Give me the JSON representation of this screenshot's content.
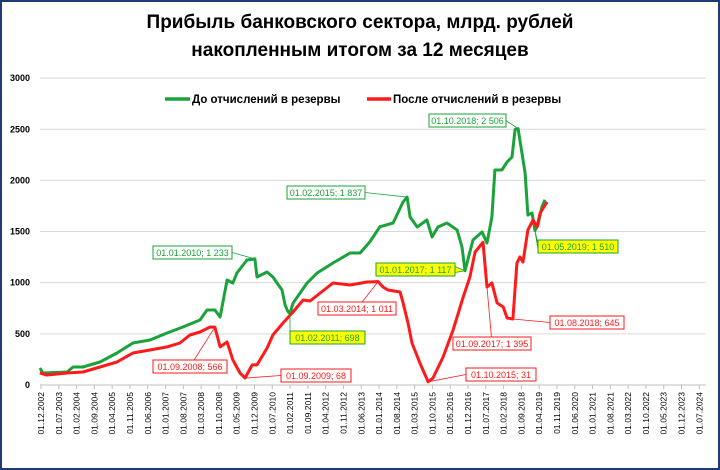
{
  "chart_data": {
    "type": "line",
    "title": [
      "Прибыль банковского сектора, млрд. рублей",
      "накопленным итогом за 12 месяцев"
    ],
    "xlabel": "",
    "ylabel": "",
    "ylim": [
      0,
      3000
    ],
    "yticks": [
      "0",
      "500",
      "1000",
      "1500",
      "2000",
      "2500",
      "3000"
    ],
    "ytick_values": [
      0,
      500,
      1000,
      1500,
      2000,
      2500,
      3000
    ],
    "xticks": [
      "01.12.2002",
      "01.07.2003",
      "01.02.2004",
      "01.09.2004",
      "01.04.2005",
      "01.11.2005",
      "01.06.2006",
      "01.01.2007",
      "01.08.2007",
      "01.03.2008",
      "01.10.2008",
      "01.05.2009",
      "01.12.2009",
      "01.07.2010",
      "01.02.2011",
      "01.09.2011",
      "01.04.2012",
      "01.11.2012",
      "01.06.2013",
      "01.01.2014",
      "01.08.2014",
      "01.03.2015",
      "01.10.2015",
      "01.05.2016",
      "01.12.2016",
      "01.07.2017",
      "01.02.2018",
      "01.09.2018",
      "01.04.2019",
      "01.11.2019",
      "01.06.2020",
      "01.01.2021",
      "01.08.2021",
      "01.03.2022",
      "01.10.2022",
      "01.05.2023",
      "01.12.2023",
      "01.07.2024"
    ],
    "x_unit": "decimal year",
    "xlim": [
      2002.917,
      2024.5
    ],
    "grid": true,
    "legend_position": "top",
    "series": [
      {
        "name": "До отчислений в резервы",
        "color": "#1aa33a",
        "points": [
          [
            2002.88,
            166
          ],
          [
            2002.98,
            117
          ],
          [
            2003.77,
            127
          ],
          [
            2003.97,
            176
          ],
          [
            2004.29,
            176
          ],
          [
            2004.85,
            225
          ],
          [
            2005.41,
            313
          ],
          [
            2005.93,
            411
          ],
          [
            2006.49,
            440
          ],
          [
            2007.05,
            508
          ],
          [
            2007.57,
            567
          ],
          [
            2008.13,
            635
          ],
          [
            2008.36,
            733
          ],
          [
            2008.62,
            733
          ],
          [
            2008.79,
            665
          ],
          [
            2009.02,
            1026
          ],
          [
            2009.21,
            997
          ],
          [
            2009.34,
            1095
          ],
          [
            2009.67,
            1222
          ],
          [
            2009.93,
            1233
          ],
          [
            2010.0,
            1056
          ],
          [
            2010.33,
            1105
          ],
          [
            2010.52,
            1056
          ],
          [
            2010.82,
            929
          ],
          [
            2010.92,
            782
          ],
          [
            2011.01,
            720
          ],
          [
            2011.08,
            698
          ],
          [
            2011.18,
            800
          ],
          [
            2011.64,
            997
          ],
          [
            2011.97,
            1095
          ],
          [
            2012.49,
            1193
          ],
          [
            2013.05,
            1290
          ],
          [
            2013.38,
            1290
          ],
          [
            2013.7,
            1400
          ],
          [
            2014.03,
            1547
          ],
          [
            2014.46,
            1584
          ],
          [
            2014.79,
            1790
          ],
          [
            2014.92,
            1837
          ],
          [
            2015.02,
            1642
          ],
          [
            2015.25,
            1544
          ],
          [
            2015.57,
            1613
          ],
          [
            2015.74,
            1447
          ],
          [
            2015.93,
            1544
          ],
          [
            2016.23,
            1584
          ],
          [
            2016.56,
            1515
          ],
          [
            2016.72,
            1349
          ],
          [
            2016.82,
            1117
          ],
          [
            2017.08,
            1417
          ],
          [
            2017.38,
            1496
          ],
          [
            2017.54,
            1388
          ],
          [
            2017.7,
            1642
          ],
          [
            2017.8,
            2102
          ],
          [
            2018.03,
            2102
          ],
          [
            2018.2,
            2180
          ],
          [
            2018.36,
            2229
          ],
          [
            2018.46,
            2500
          ],
          [
            2018.56,
            2506
          ],
          [
            2018.79,
            2072
          ],
          [
            2018.88,
            1662
          ],
          [
            2019.02,
            1681
          ],
          [
            2019.11,
            1510
          ],
          [
            2019.21,
            1564
          ],
          [
            2019.34,
            1740
          ],
          [
            2019.44,
            1810
          ]
        ]
      },
      {
        "name": "После отчислений в резервы",
        "color": "#ff1a1a",
        "points": [
          [
            2002.88,
            117
          ],
          [
            2003.11,
            98
          ],
          [
            2003.77,
            117
          ],
          [
            2004.29,
            127
          ],
          [
            2004.85,
            176
          ],
          [
            2005.41,
            225
          ],
          [
            2005.93,
            313
          ],
          [
            2006.49,
            342
          ],
          [
            2007.05,
            372
          ],
          [
            2007.47,
            411
          ],
          [
            2007.8,
            489
          ],
          [
            2008.13,
            518
          ],
          [
            2008.46,
            567
          ],
          [
            2008.62,
            566
          ],
          [
            2008.79,
            372
          ],
          [
            2009.02,
            420
          ],
          [
            2009.21,
            244
          ],
          [
            2009.44,
            117
          ],
          [
            2009.61,
            68
          ],
          [
            2009.84,
            196
          ],
          [
            2010.0,
            196
          ],
          [
            2010.33,
            362
          ],
          [
            2010.52,
            489
          ],
          [
            2010.85,
            606
          ],
          [
            2011.18,
            714
          ],
          [
            2011.51,
            831
          ],
          [
            2011.74,
            821
          ],
          [
            2012.07,
            899
          ],
          [
            2012.49,
            997
          ],
          [
            2013.05,
            978
          ],
          [
            2013.61,
            1007
          ],
          [
            2013.97,
            1011
          ],
          [
            2014.13,
            958
          ],
          [
            2014.29,
            929
          ],
          [
            2014.69,
            909
          ],
          [
            2014.79,
            802
          ],
          [
            2014.95,
            606
          ],
          [
            2015.08,
            411
          ],
          [
            2015.34,
            215
          ],
          [
            2015.61,
            31
          ],
          [
            2015.77,
            68
          ],
          [
            2016.1,
            274
          ],
          [
            2016.43,
            538
          ],
          [
            2016.76,
            860
          ],
          [
            2016.98,
            1056
          ],
          [
            2017.15,
            1300
          ],
          [
            2017.41,
            1395
          ],
          [
            2017.54,
            958
          ],
          [
            2017.7,
            997
          ],
          [
            2017.87,
            802
          ],
          [
            2018.07,
            763
          ],
          [
            2018.2,
            655
          ],
          [
            2018.39,
            645
          ],
          [
            2018.52,
            1192
          ],
          [
            2018.62,
            1251
          ],
          [
            2018.72,
            1202
          ],
          [
            2018.88,
            1515
          ],
          [
            2019.05,
            1613
          ],
          [
            2019.18,
            1544
          ],
          [
            2019.28,
            1681
          ],
          [
            2019.51,
            1790
          ]
        ]
      }
    ],
    "annotations": [
      {
        "label": "01.01.2010; 1 233",
        "series": 0,
        "x": 2009.93,
        "y": 1233,
        "style": "green"
      },
      {
        "label": "01.02.2015; 1 837",
        "series": 0,
        "x": 2014.92,
        "y": 1837,
        "style": "green"
      },
      {
        "label": "01.10.2018; 2 506",
        "series": 0,
        "x": 2018.56,
        "y": 2506,
        "style": "green"
      },
      {
        "label": "01.02.2011; 698",
        "series": 0,
        "x": 2011.08,
        "y": 698,
        "style": "yellow"
      },
      {
        "label": "01.01.2017; 1 117",
        "series": 0,
        "x": 2016.82,
        "y": 1117,
        "style": "yellow"
      },
      {
        "label": "01.05.2019; 1 510",
        "series": 0,
        "x": 2019.11,
        "y": 1510,
        "style": "yellow"
      },
      {
        "label": "01.09.2008; 566",
        "series": 1,
        "x": 2008.62,
        "y": 566,
        "style": "red"
      },
      {
        "label": "01.03.2014; 1 011",
        "series": 1,
        "x": 2013.97,
        "y": 1011,
        "style": "red"
      },
      {
        "label": "01.09.2009; 68",
        "series": 1,
        "x": 2009.61,
        "y": 68,
        "style": "red"
      },
      {
        "label": "01.09.2017; 1 395",
        "series": 1,
        "x": 2017.41,
        "y": 1395,
        "style": "red"
      },
      {
        "label": "01.10.2015; 31",
        "series": 1,
        "x": 2015.61,
        "y": 31,
        "style": "red"
      },
      {
        "label": "01.08.2018; 645",
        "series": 1,
        "x": 2018.39,
        "y": 645,
        "style": "red"
      }
    ]
  }
}
